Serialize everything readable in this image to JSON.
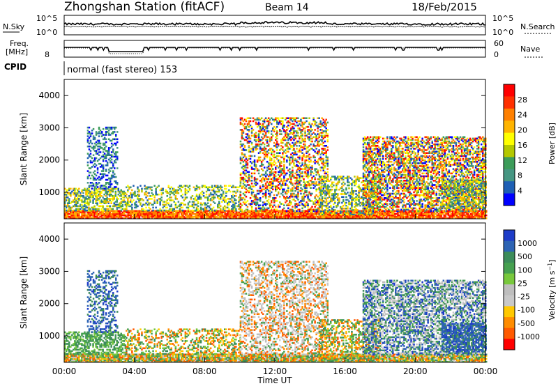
{
  "header": {
    "station": "Zhongshan Station (fitACF)",
    "beam": "Beam 14",
    "date": "18/Feb/2015"
  },
  "strip_labels": {
    "nsky": "N.Sky",
    "freq_line1": "Freq.",
    "freq_line2": "[MHz]",
    "cpid": "CPID",
    "nsearch": "N.Search",
    "nave": "Nave",
    "program": "normal (fast stereo) 153"
  },
  "chart_data": [
    {
      "type": "line",
      "name": "noise",
      "ylabel_left": "N.Sky",
      "ylabel_right": "N.Search",
      "left_ticks": [
        "10^5",
        "10^0"
      ],
      "right_ticks": [
        "10^5",
        "10^0"
      ],
      "description_series": [
        "sky noise",
        "search noise"
      ]
    },
    {
      "type": "line",
      "name": "frequency",
      "ylabel_left": "Freq. [MHz]",
      "ylabel_right": "Nave",
      "left_ticks": [
        "8"
      ],
      "right_ticks": [
        "60",
        "0"
      ]
    },
    {
      "type": "heatmap",
      "name": "power",
      "ylabel": "Slant Range [km]",
      "yticks": [
        1000,
        2000,
        3000,
        4000
      ],
      "ylim": [
        180,
        4500
      ],
      "xlim_hours": [
        0,
        24
      ],
      "colorbar_label": "Power [dB]",
      "colorbar_ticks": [
        "28",
        "24",
        "20",
        "16",
        "12",
        "8",
        "4"
      ],
      "colorbar_colors": [
        "#ff0000",
        "#ff3000",
        "#ff8000",
        "#ffb400",
        "#ffff00",
        "#b4c800",
        "#3c9c5a",
        "#469682",
        "#1e5fb4",
        "#0000ff"
      ]
    },
    {
      "type": "heatmap",
      "name": "velocity",
      "ylabel": "Slant Range [km]",
      "yticks": [
        1000,
        2000,
        3000,
        4000
      ],
      "ylim": [
        180,
        4500
      ],
      "xlim_hours": [
        0,
        24
      ],
      "colorbar_label": "Velocity [m s^-1]",
      "colorbar_ticks": [
        "1000",
        "500",
        "100",
        "25",
        "-25",
        "-100",
        "-500",
        "-1000"
      ],
      "colorbar_colors": [
        "#1e3cc8",
        "#2d64b4",
        "#3c8c5a",
        "#46a050",
        "#78c83c",
        "#bebebe",
        "#c8c8c8",
        "#ffc800",
        "#ff8c00",
        "#ff5a00",
        "#ff0000"
      ]
    }
  ],
  "xaxis": {
    "ticks": [
      "00:00",
      "04:00",
      "08:00",
      "12:00",
      "16:00",
      "20:00",
      "00:00"
    ],
    "label": "Time UT"
  }
}
